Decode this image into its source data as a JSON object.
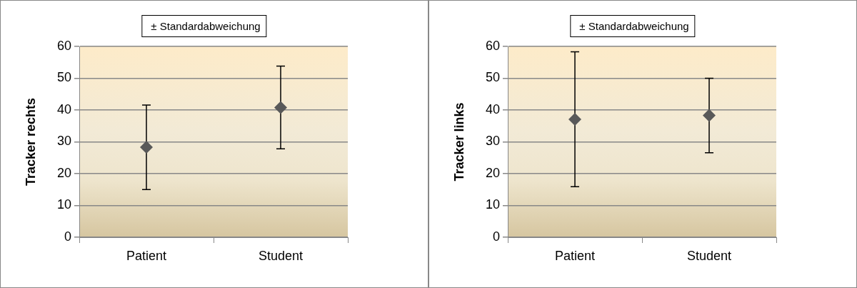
{
  "chart_data": [
    {
      "type": "scatter",
      "categories": [
        "Patient",
        "Student"
      ],
      "series": [
        {
          "name": "± Standardabweichung",
          "color": "#595959",
          "values": [
            28.3,
            40.8
          ],
          "errors": [
            13.3,
            13
          ]
        }
      ],
      "ylabel": "Tracker rechts",
      "ylim": [
        0,
        60
      ],
      "yticks": [
        0,
        10,
        20,
        30,
        40,
        50,
        60
      ],
      "grid": "y",
      "legend": "top",
      "marker": "diamond"
    },
    {
      "type": "scatter",
      "categories": [
        "Patient",
        "Student"
      ],
      "series": [
        {
          "name": "± Standardabweichung",
          "color": "#595959",
          "values": [
            37.1,
            38.3
          ],
          "errors": [
            21.2,
            11.7
          ]
        }
      ],
      "ylabel": "Tracker links",
      "ylim": [
        0,
        60
      ],
      "yticks": [
        0,
        10,
        20,
        30,
        40,
        50,
        60
      ],
      "grid": "y",
      "legend": "top",
      "marker": "diamond"
    }
  ]
}
